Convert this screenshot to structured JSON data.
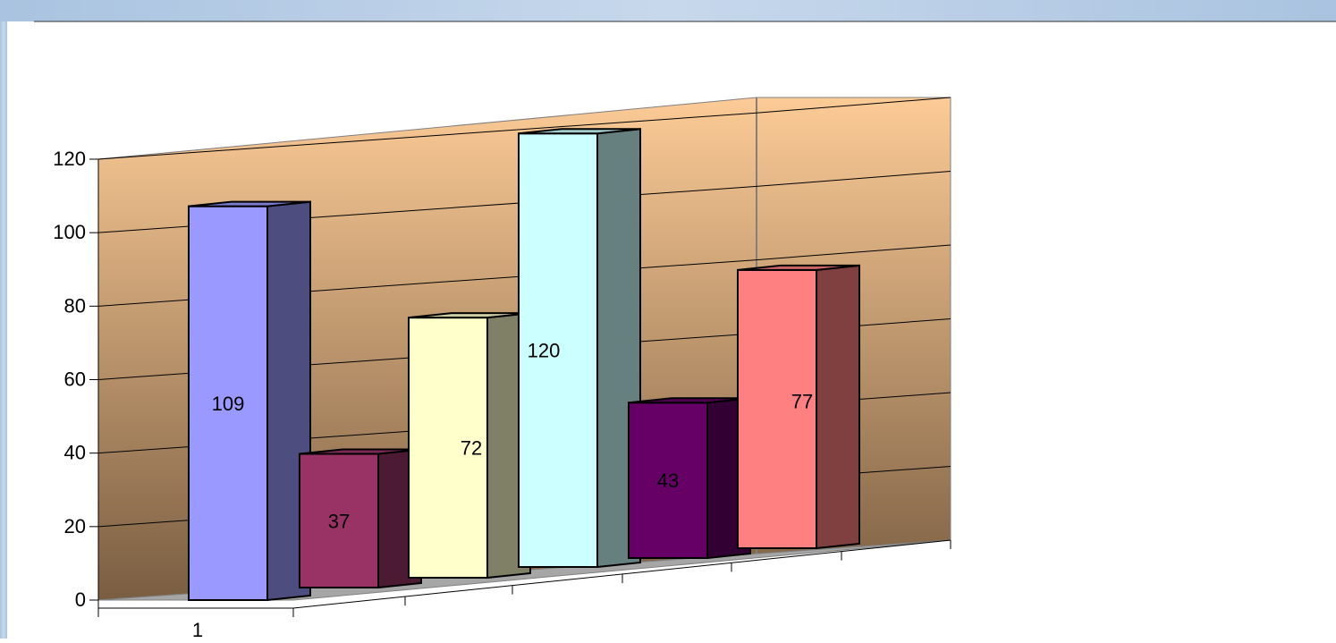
{
  "chart_data": {
    "type": "bar",
    "style": "3d-clustered-column",
    "categories": [
      "1"
    ],
    "series": [
      {
        "values": [
          109
        ],
        "color": "#9999FF"
      },
      {
        "values": [
          37
        ],
        "color": "#993366"
      },
      {
        "values": [
          72
        ],
        "color": "#FFFFCC"
      },
      {
        "values": [
          120
        ],
        "color": "#CCFFFF"
      },
      {
        "values": [
          43
        ],
        "color": "#660066"
      },
      {
        "values": [
          77
        ],
        "color": "#FF8080"
      }
    ],
    "data_labels": [
      "109",
      "37",
      "72",
      "120",
      "43",
      "77"
    ],
    "ylim": [
      0,
      120
    ],
    "yticks": [
      0,
      20,
      40,
      60,
      80,
      100,
      120
    ],
    "ytick_labels": [
      "0",
      "20",
      "40",
      "60",
      "80",
      "100",
      "120"
    ],
    "grid": true,
    "wall_gradient": [
      "#FCCB96",
      "#7A5E42"
    ],
    "floor_color": "#A6A6A6",
    "background_color": "#FFFFFF",
    "frame_color": "#A9C3E0",
    "title": "",
    "xlabel": "",
    "ylabel": ""
  }
}
